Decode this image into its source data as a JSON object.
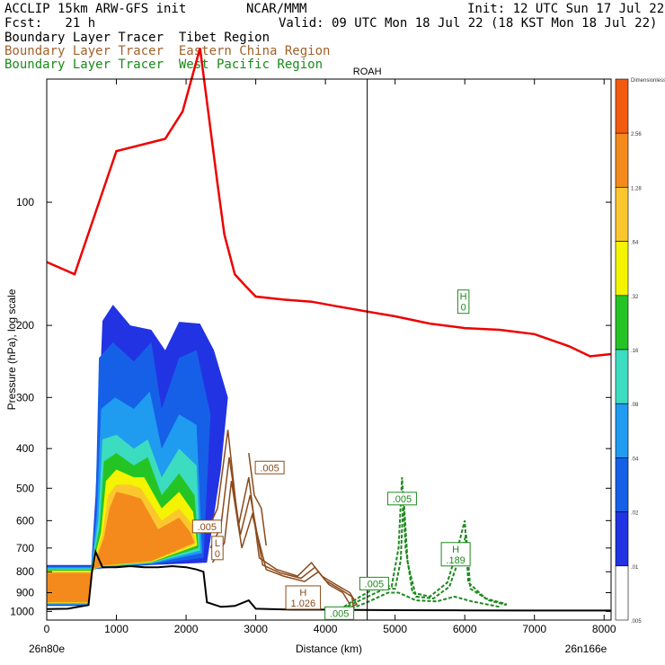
{
  "header": {
    "model": "ACCLIP 15km ARW-GFS init",
    "org": "NCAR/MMM",
    "init": "Init: 12 UTC Sun 17 Jul 22",
    "fcst": "Fcst:   21 h",
    "valid": "Valid: 09 UTC Mon 18 Jul 22 (18 KST Mon 18 Jul 22)",
    "legend": [
      {
        "text": "Boundary Layer Tracer  Tibet Region",
        "color": "#000000"
      },
      {
        "text": "Boundary Layer Tracer  Eastern China Region",
        "color": "#a0622a"
      },
      {
        "text": "Boundary Layer Tracer  West Pacific Region",
        "color": "#1a8a1a"
      }
    ]
  },
  "chart_data": {
    "type": "cross-section",
    "xlabel": "Distance (km)",
    "ylabel": "Pressure (hPa), log scale",
    "xlim": [
      0,
      8100
    ],
    "ylim": [
      1050,
      50
    ],
    "x_ticks": [
      0,
      1000,
      2000,
      3000,
      4000,
      5000,
      6000,
      7000,
      8000
    ],
    "y_ticks": [
      100,
      200,
      300,
      400,
      500,
      600,
      700,
      800,
      900,
      1000
    ],
    "y_scale": "log",
    "left_endpoint": "26n80e",
    "right_endpoint": "26n166e",
    "marker": {
      "label": "ROAH",
      "x": 4600
    },
    "colorbar": {
      "labels": [
        "Dimensionless",
        "2.56",
        "1.28",
        ".64",
        ".32",
        ".16",
        ".08",
        ".04",
        ".02",
        ".01",
        ".005"
      ],
      "colors": [
        "#f25a0f",
        "#f48a1c",
        "#fac82e",
        "#f4f400",
        "#25c425",
        "#3cdcc0",
        "#1f9bf0",
        "#1660e8",
        "#2233e4",
        "#ffffff"
      ]
    },
    "tropopause_color": "#ee0000",
    "tropopause": [
      [
        0,
        140
      ],
      [
        400,
        150
      ],
      [
        1000,
        75
      ],
      [
        1700,
        70
      ],
      [
        1950,
        60
      ],
      [
        2200,
        42
      ],
      [
        2450,
        90
      ],
      [
        2550,
        120
      ],
      [
        2700,
        150
      ],
      [
        2850,
        160
      ],
      [
        3000,
        170
      ],
      [
        3400,
        173
      ],
      [
        3800,
        175
      ],
      [
        4200,
        180
      ],
      [
        4600,
        185
      ],
      [
        5000,
        190
      ],
      [
        5500,
        198
      ],
      [
        6000,
        203
      ],
      [
        6500,
        205
      ],
      [
        7000,
        210
      ],
      [
        7500,
        225
      ],
      [
        7800,
        238
      ],
      [
        8100,
        235
      ]
    ],
    "terrain": [
      [
        0,
        987
      ],
      [
        300,
        985
      ],
      [
        600,
        965
      ],
      [
        650,
        800
      ],
      [
        700,
        715
      ],
      [
        800,
        780
      ],
      [
        1000,
        780
      ],
      [
        1200,
        775
      ],
      [
        1400,
        780
      ],
      [
        1600,
        780
      ],
      [
        1800,
        775
      ],
      [
        2000,
        780
      ],
      [
        2150,
        790
      ],
      [
        2250,
        800
      ],
      [
        2300,
        950
      ],
      [
        2500,
        975
      ],
      [
        2700,
        970
      ],
      [
        2900,
        940
      ],
      [
        3000,
        985
      ],
      [
        3500,
        990
      ],
      [
        4000,
        990
      ],
      [
        4500,
        992
      ],
      [
        5000,
        993
      ],
      [
        6000,
        994
      ],
      [
        7000,
        995
      ],
      [
        8100,
        995
      ]
    ],
    "tracers": [
      {
        "name": "Tibet Region",
        "color": "#000000"
      },
      {
        "name": "Eastern China Region",
        "color": "#8b4a1a"
      },
      {
        "name": "West Pacific Region",
        "color": "#1e8a1e"
      }
    ],
    "annotations": [
      {
        "text": "H",
        "text2": "0",
        "x": 5980,
        "p": 175,
        "color": "#1e8a1e"
      },
      {
        "text": ".005",
        "x": 3200,
        "p": 445,
        "color": "#8b4a1a"
      },
      {
        "text": ".005",
        "x": 5100,
        "p": 530,
        "color": "#1e8a1e"
      },
      {
        "text": ".005",
        "x": 2300,
        "p": 620,
        "color": "#8b4a1a"
      },
      {
        "text": "L",
        "text2": "0",
        "x": 2450,
        "p": 700,
        "color": "#8b4a1a"
      },
      {
        "text": ".005",
        "x": 4700,
        "p": 855,
        "color": "#1e8a1e"
      },
      {
        "text": "H",
        "text2": ".189",
        "x": 5870,
        "p": 725,
        "color": "#1e8a1e"
      },
      {
        "text": "H",
        "text2": "1.026",
        "x": 3680,
        "p": 925,
        "color": "#8b4a1a"
      },
      {
        "text": ".005",
        "x": 4200,
        "p": 1010,
        "color": "#1e8a1e"
      }
    ]
  }
}
